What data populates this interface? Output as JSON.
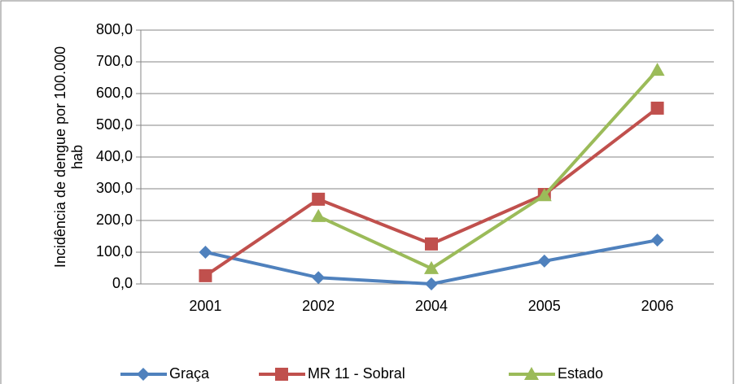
{
  "chart_data": {
    "type": "line",
    "y_label": "Incidência de dengue por 100.000 hab",
    "categories": [
      "2001",
      "2002",
      "2004",
      "2005",
      "2006"
    ],
    "series": [
      {
        "name": "Graça",
        "color": "#4f81bd",
        "values": [
          100,
          20,
          0,
          72,
          138
        ]
      },
      {
        "name": "MR 11 - Sobral",
        "color": "#c0504d",
        "values": [
          26,
          267,
          126,
          282,
          554
        ]
      },
      {
        "name": "Estado",
        "color": "#9bbb59",
        "values": [
          null,
          213,
          49,
          279,
          674
        ]
      }
    ],
    "ylim": [
      0,
      800
    ],
    "yticks": [
      {
        "value": 0,
        "label": "0,0"
      },
      {
        "value": 100,
        "label": "100,0"
      },
      {
        "value": 200,
        "label": "200,0"
      },
      {
        "value": 300,
        "label": "300,0"
      },
      {
        "value": 400,
        "label": "400,0"
      },
      {
        "value": 500,
        "label": "500,0"
      },
      {
        "value": 600,
        "label": "600,0"
      },
      {
        "value": 700,
        "label": "700,0"
      },
      {
        "value": 800,
        "label": "800,0"
      }
    ],
    "grid": true,
    "legend": "bottom"
  }
}
